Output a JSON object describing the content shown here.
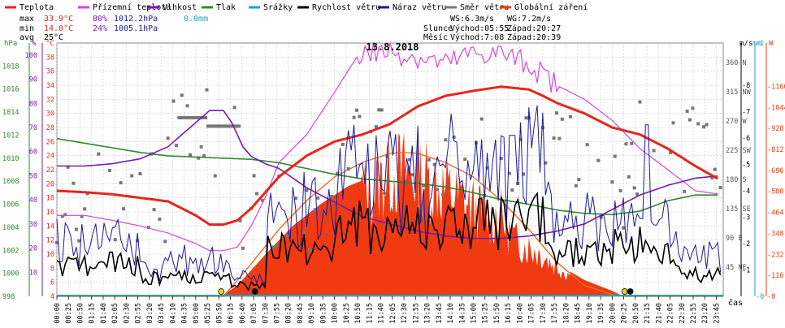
{
  "legend": [
    {
      "label": "Teplota",
      "color": "#e8251c"
    },
    {
      "label": "Přízemní teplota",
      "color": "#d845d8"
    },
    {
      "label": "Vlhkost",
      "color": "#7a18b8"
    },
    {
      "label": "Tlak",
      "color": "#2a8a2a"
    },
    {
      "label": "Srážky",
      "color": "#1aa4c8"
    },
    {
      "label": "Rychlost větru",
      "color": "#000000"
    },
    {
      "label": "Náraz větru",
      "color": "#1a1a9c"
    },
    {
      "label": "Směr větru",
      "color": "#777777"
    },
    {
      "label": "Globální záření",
      "color": "#f03a12"
    }
  ],
  "stats": {
    "max": {
      "label": "max",
      "temp": "33.9°C",
      "hum": "80%",
      "press": "1012.2hPa",
      "rain": "0.0mm"
    },
    "min": {
      "label": "min",
      "temp": "14.0°C",
      "hum": "24%",
      "press": "1005.1hPa"
    },
    "avg": {
      "label": "avg",
      "temp": "25°C"
    }
  },
  "wind_info": {
    "ws": "WS:6.3m/s",
    "wg": "WG:7.2m/s"
  },
  "sun": {
    "label": "Slunce",
    "rise": "Východ:05:55",
    "set": "Západ:20:27"
  },
  "moon": {
    "label": "Měsíc",
    "rise": "Východ:7:08",
    "set": "Západ:20:39"
  },
  "date": "13.8.2018",
  "axis_units": {
    "hpa": "hPa",
    "pct": "%",
    "temp": "°C",
    "ms": "m/s",
    "mm": "mm",
    "w": "W",
    "cas": "čas"
  },
  "colors": {
    "temp": "#e8251c",
    "ground": "#d845d8",
    "hum": "#7a18b8",
    "press": "#2a8a2a",
    "rain": "#1aa4c8",
    "wind": "#000000",
    "gust": "#1a1a9c",
    "dir": "#777777",
    "rad": "#f03a12",
    "rad_curve": "#f06a20",
    "grid": "#c8c8c8"
  },
  "chart_data": {
    "type": "line",
    "title": "13.8.2018",
    "x_ticks": [
      "00:00",
      "00:25",
      "00:50",
      "01:15",
      "01:40",
      "02:05",
      "02:30",
      "02:55",
      "03:20",
      "03:45",
      "04:10",
      "04:35",
      "05:00",
      "05:25",
      "05:50",
      "06:15",
      "06:40",
      "07:05",
      "07:30",
      "07:55",
      "08:20",
      "08:45",
      "09:10",
      "09:35",
      "10:00",
      "10:25",
      "10:50",
      "11:15",
      "11:40",
      "12:05",
      "12:30",
      "12:55",
      "13:20",
      "13:45",
      "14:10",
      "14:35",
      "15:00",
      "15:25",
      "15:50",
      "16:15",
      "16:40",
      "17:05",
      "17:30",
      "17:55",
      "18:20",
      "18:45",
      "19:10",
      "19:35",
      "20:00",
      "20:25",
      "20:50",
      "21:15",
      "21:40",
      "22:05",
      "22:30",
      "22:55",
      "23:20",
      "23:45"
    ],
    "y_axes": {
      "hpa": {
        "label": "hPa",
        "ticks": [
          998,
          1000,
          1002,
          1004,
          1006,
          1008,
          1010,
          1012,
          1014,
          1016,
          1018
        ]
      },
      "pct": {
        "label": "%",
        "ticks": [
          10,
          20,
          30,
          40,
          50,
          60,
          70,
          80,
          90,
          100
        ]
      },
      "temp": {
        "label": "°C",
        "ticks": [
          4,
          6,
          8,
          10,
          12,
          14,
          16,
          18,
          20,
          22,
          24,
          26,
          28,
          30,
          32,
          34,
          36,
          38
        ]
      },
      "dir": {
        "ticks": [
          {
            "v": 45,
            "t": "45 NE"
          },
          {
            "v": 90,
            "t": "90 E"
          },
          {
            "v": 135,
            "t": "135 SE"
          },
          {
            "v": 180,
            "t": "180 S"
          },
          {
            "v": 225,
            "t": "225 SW"
          },
          {
            "v": 270,
            "t": "270 W"
          },
          {
            "v": 315,
            "t": "315 NW"
          },
          {
            "v": 360,
            "t": "360 N"
          }
        ]
      },
      "ms": {
        "label": "m/s",
        "ticks": [
          1,
          2,
          3,
          4,
          5,
          6,
          7,
          8
        ]
      },
      "mm": {
        "label": "mm",
        "ticks": [
          0,
          1
        ]
      },
      "w": {
        "label": "W",
        "ticks": [
          0,
          116,
          232,
          348,
          464,
          580,
          696,
          812,
          928,
          1044,
          1160
        ]
      }
    },
    "series": [
      {
        "name": "Teplota",
        "axis": "temp",
        "x": [
          0,
          1,
          2,
          3,
          4,
          5,
          5.5,
          6,
          6.5,
          7,
          8,
          9,
          10,
          11,
          12,
          13,
          14,
          15,
          16,
          17,
          17.5,
          18,
          19,
          20,
          21,
          22,
          23,
          23.9
        ],
        "y": [
          19,
          18.8,
          18.5,
          18,
          17.5,
          15.5,
          14.2,
          14.2,
          14.8,
          16.5,
          21,
          24,
          26,
          27,
          28.5,
          31,
          32.5,
          33.2,
          33.8,
          33.4,
          32.5,
          31.5,
          30,
          28,
          27,
          25,
          22.5,
          20.5
        ]
      },
      {
        "name": "Přízemní teplota",
        "axis": "temp",
        "x": [
          0,
          1,
          2,
          3,
          4,
          5,
          5.5,
          6,
          6.5,
          7,
          7.5,
          8,
          9,
          10,
          10.8,
          11,
          12,
          13,
          14,
          15,
          16,
          17,
          18,
          19,
          20,
          21,
          22,
          23,
          23.9
        ],
        "y": [
          15.5,
          15.5,
          14.8,
          14,
          13,
          11.5,
          10.5,
          10.5,
          11,
          14,
          18,
          23,
          27,
          33,
          38,
          38.5,
          38.8,
          38,
          37,
          38.5,
          38.5,
          37,
          34,
          32,
          29,
          25,
          22,
          19,
          18.5
        ]
      },
      {
        "name": "Vlhkost",
        "axis": "pct",
        "x": [
          0,
          1,
          2,
          3,
          4,
          5,
          5.5,
          6,
          6.3,
          6.7,
          7,
          7.5,
          8,
          9,
          10,
          11,
          12,
          13,
          14,
          15,
          16,
          17,
          18,
          19,
          19.5,
          20,
          21,
          22,
          23,
          23.9
        ],
        "y": [
          54,
          54,
          55,
          57,
          62,
          72,
          77,
          77,
          72,
          62,
          58,
          55,
          53,
          45,
          39,
          33,
          30,
          27,
          25,
          24,
          24,
          25,
          27,
          30,
          33,
          36,
          42,
          46,
          49,
          50
        ]
      },
      {
        "name": "Tlak",
        "axis": "hpa",
        "x": [
          0,
          1,
          2,
          3,
          4,
          5,
          6,
          7,
          8,
          9,
          10,
          11,
          12,
          13,
          14,
          15,
          16,
          17,
          18,
          19,
          20,
          21,
          22,
          23,
          23.9
        ],
        "y": [
          1011.7,
          1011.3,
          1010.9,
          1010.5,
          1010.2,
          1010.1,
          1010.0,
          1009.9,
          1009.6,
          1009.1,
          1008.6,
          1008.2,
          1008.0,
          1007.8,
          1007.5,
          1007.0,
          1006.4,
          1006.0,
          1005.5,
          1005.2,
          1005.1,
          1005.4,
          1006.3,
          1006.8,
          1006.8
        ]
      },
      {
        "name": "Globální záření",
        "axis": "w",
        "x": [
          0,
          5.9,
          6.5,
          7.5,
          8.5,
          9.5,
          10.5,
          11.5,
          12,
          13,
          14,
          15,
          15.5,
          16,
          16.5,
          17,
          17.5,
          18,
          19,
          20,
          20.4,
          24
        ],
        "y": [
          0,
          0,
          60,
          230,
          390,
          510,
          610,
          670,
          760,
          750,
          650,
          540,
          480,
          490,
          340,
          300,
          250,
          180,
          90,
          30,
          0,
          0
        ]
      },
      {
        "name": "Globální záření (max)",
        "axis": "w",
        "x": [
          0,
          6,
          7,
          8,
          9,
          10,
          11,
          12,
          12.5,
          13,
          14,
          15,
          16,
          17,
          18,
          19,
          20,
          20.5,
          24
        ],
        "y": [
          0,
          0,
          180,
          370,
          530,
          660,
          740,
          790,
          795,
          790,
          740,
          660,
          530,
          370,
          190,
          60,
          10,
          0,
          0
        ]
      }
    ],
    "markers": [
      {
        "name": "sunrise",
        "time": 5.92
      },
      {
        "name": "moonrise",
        "time": 7.13
      },
      {
        "name": "sunset",
        "time": 20.45
      },
      {
        "name": "moonset",
        "time": 20.65
      }
    ]
  }
}
